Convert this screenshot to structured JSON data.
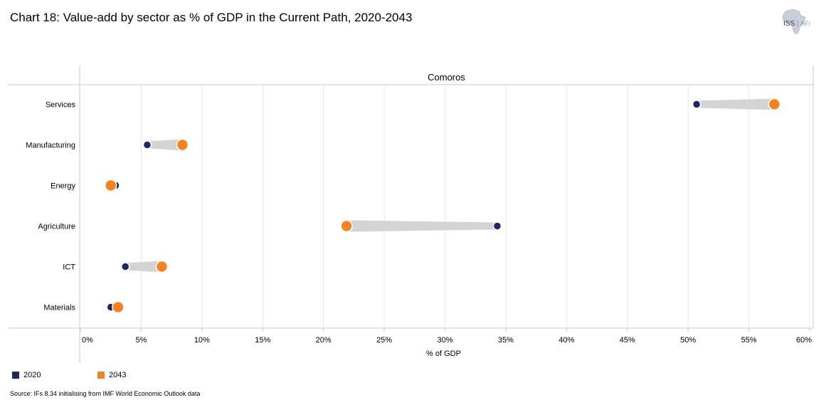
{
  "title": "Chart 18: Value-add by sector as % of GDP in the Current Path, 2020-2043",
  "logo": {
    "main": "ISS",
    "sub": "AFI"
  },
  "source": "Source: IFs 8.34 initialising from IMF World Economic Outlook data",
  "legend": [
    {
      "label": "2020",
      "color": "#1b2a5c"
    },
    {
      "label": "2043",
      "color": "#f28322"
    }
  ],
  "chart_data": {
    "type": "dumbbell",
    "panel_title": "Comoros",
    "xlabel": "% of GDP",
    "xlim": [
      0,
      60
    ],
    "xticks": [
      "0%",
      "5%",
      "10%",
      "15%",
      "20%",
      "25%",
      "30%",
      "35%",
      "40%",
      "45%",
      "50%",
      "55%",
      "60%"
    ],
    "categories": [
      "Services",
      "Manufacturing",
      "Energy",
      "Agriculture",
      "ICT",
      "Materials"
    ],
    "series": [
      {
        "name": "2020",
        "color": "#1b2a5c",
        "values": [
          50.7,
          5.5,
          2.9,
          34.3,
          3.7,
          2.5
        ]
      },
      {
        "name": "2043",
        "color": "#f28322",
        "values": [
          57.1,
          8.4,
          2.5,
          21.9,
          6.7,
          3.1
        ]
      }
    ],
    "grid": true
  }
}
